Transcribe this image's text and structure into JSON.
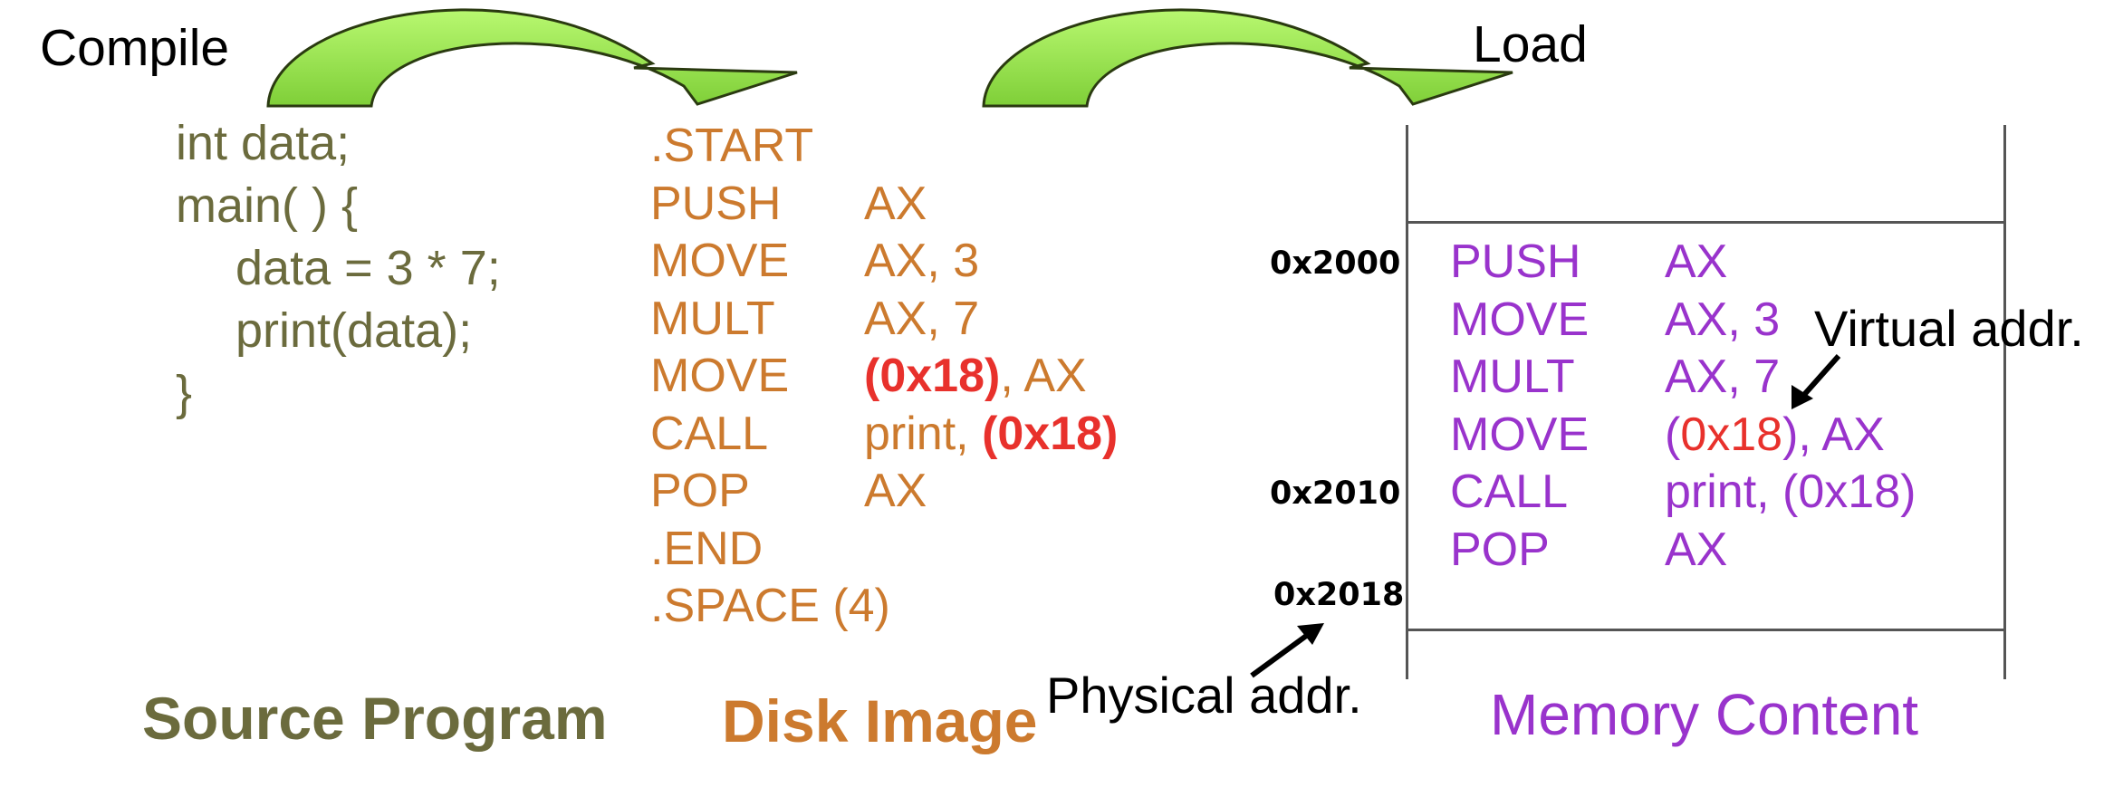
{
  "labels": {
    "compile": "Compile",
    "load": "Load",
    "virtual_addr": "Virtual addr.",
    "physical_addr": "Physical addr."
  },
  "source": {
    "lines": [
      "int data;",
      "main( ) {",
      "data = 3 * 7;",
      "print(data);",
      "}"
    ],
    "title": "Source Program"
  },
  "disk": {
    "start": ".START",
    "rows": [
      {
        "op": "PUSH",
        "arg": "AX"
      },
      {
        "op": "MOVE",
        "arg": "AX, 3"
      },
      {
        "op": "MULT",
        "arg": "AX, 7"
      },
      {
        "op": "MOVE",
        "arg_addr": "(0x18)",
        "arg_rest": ", AX"
      },
      {
        "op": "CALL",
        "arg_pre": "print, ",
        "arg_addr": "(0x18)"
      },
      {
        "op": "POP",
        "arg": "AX"
      }
    ],
    "end": ".END",
    "space": ".SPACE (4)",
    "title": "Disk Image"
  },
  "memory": {
    "addresses": [
      "0x2000",
      "0x2010",
      "0x2018"
    ],
    "rows": [
      {
        "op": "PUSH",
        "arg": "AX"
      },
      {
        "op": "MOVE",
        "arg": "AX, 3"
      },
      {
        "op": "MULT",
        "arg": "AX, 7"
      },
      {
        "op": "MOVE",
        "arg_open": "(",
        "arg_addr": "0x18",
        "arg_rest": "), AX"
      },
      {
        "op": "CALL",
        "arg": "print, (0x18)"
      },
      {
        "op": "POP",
        "arg": "AX"
      }
    ],
    "title": "Memory Content"
  },
  "colors": {
    "source": "#6b6b3d",
    "disk": "#cc7a2e",
    "memory": "#9933cc",
    "highlight": "#e8312c",
    "arrow_green": "#a8f060"
  }
}
